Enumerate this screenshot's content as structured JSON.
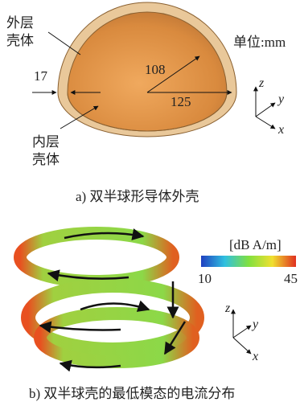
{
  "panel_a": {
    "outer_shell_label": [
      "外层",
      "壳体"
    ],
    "unit": "单位:mm",
    "dimensions": {
      "wall": 17,
      "inner_radius": 108,
      "outer_radius": 125
    },
    "inner_shell_label": [
      "内层",
      "壳体"
    ],
    "axes": {
      "z": "z",
      "y": "y",
      "x": "x"
    },
    "caption": "a) 双半球形导体外壳"
  },
  "panel_b": {
    "colorbar": {
      "unit": "[dB A/m]",
      "min": 10,
      "max": 45
    },
    "axes": {
      "z": "z",
      "y": "y",
      "x": "x"
    },
    "caption": "b) 双半球壳的最低模态的电流分布"
  }
}
